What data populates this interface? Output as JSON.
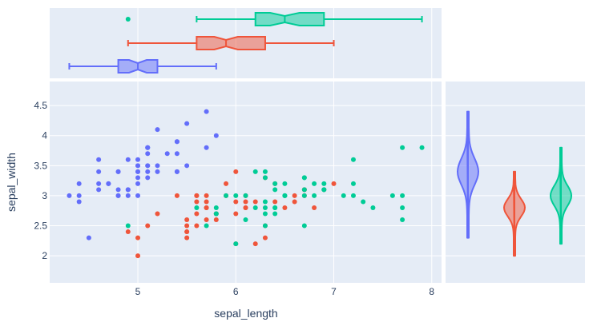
{
  "chart_data": {
    "type": "scatter",
    "xlabel": "sepal_length",
    "ylabel": "sepal_width",
    "xlim": [
      4.1,
      8.1
    ],
    "ylim": [
      1.55,
      4.9
    ],
    "xticks": [
      "5",
      "6",
      "7",
      "8"
    ],
    "yticks": [
      "2",
      "2.5",
      "3",
      "3.5",
      "4",
      "4.5"
    ],
    "grid": true,
    "legend": "none",
    "plot_background": "#E5ECF6",
    "series": [
      {
        "color": "#636EFA",
        "points": [
          [
            5.1,
            3.5
          ],
          [
            4.9,
            3.0
          ],
          [
            4.7,
            3.2
          ],
          [
            4.6,
            3.1
          ],
          [
            5.0,
            3.6
          ],
          [
            5.4,
            3.9
          ],
          [
            4.6,
            3.4
          ],
          [
            5.0,
            3.4
          ],
          [
            4.4,
            2.9
          ],
          [
            4.9,
            3.1
          ],
          [
            5.4,
            3.7
          ],
          [
            4.8,
            3.4
          ],
          [
            4.8,
            3.0
          ],
          [
            4.3,
            3.0
          ],
          [
            5.8,
            4.0
          ],
          [
            5.7,
            4.4
          ],
          [
            5.4,
            3.9
          ],
          [
            5.1,
            3.5
          ],
          [
            5.7,
            3.8
          ],
          [
            5.1,
            3.8
          ],
          [
            5.4,
            3.4
          ],
          [
            5.1,
            3.7
          ],
          [
            4.6,
            3.6
          ],
          [
            5.1,
            3.3
          ],
          [
            4.8,
            3.4
          ],
          [
            5.0,
            3.0
          ],
          [
            5.0,
            3.4
          ],
          [
            5.2,
            3.5
          ],
          [
            5.2,
            3.4
          ],
          [
            4.7,
            3.2
          ],
          [
            4.8,
            3.1
          ],
          [
            5.4,
            3.4
          ],
          [
            5.2,
            4.1
          ],
          [
            5.5,
            4.2
          ],
          [
            4.9,
            3.1
          ],
          [
            5.0,
            3.2
          ],
          [
            5.5,
            3.5
          ],
          [
            4.9,
            3.6
          ],
          [
            4.4,
            3.0
          ],
          [
            5.1,
            3.4
          ],
          [
            5.0,
            3.5
          ],
          [
            4.5,
            2.3
          ],
          [
            4.4,
            3.2
          ],
          [
            5.0,
            3.5
          ],
          [
            5.1,
            3.8
          ],
          [
            4.8,
            3.0
          ],
          [
            5.1,
            3.8
          ],
          [
            4.6,
            3.2
          ],
          [
            5.3,
            3.7
          ],
          [
            5.0,
            3.3
          ]
        ],
        "box": {
          "min": 4.3,
          "q1": 4.8,
          "median": 5.0,
          "q3": 5.2,
          "max": 5.8,
          "notch": [
            4.91,
            5.09
          ]
        },
        "violin": {
          "min": 2.3,
          "max": 4.4,
          "median": 3.4
        }
      },
      {
        "color": "#EF553B",
        "points": [
          [
            7.0,
            3.2
          ],
          [
            6.4,
            3.2
          ],
          [
            6.9,
            3.1
          ],
          [
            5.5,
            2.3
          ],
          [
            6.5,
            2.8
          ],
          [
            5.7,
            2.8
          ],
          [
            6.3,
            3.3
          ],
          [
            4.9,
            2.4
          ],
          [
            6.6,
            2.9
          ],
          [
            5.2,
            2.7
          ],
          [
            5.0,
            2.0
          ],
          [
            5.9,
            3.0
          ],
          [
            6.0,
            2.2
          ],
          [
            6.1,
            2.9
          ],
          [
            5.6,
            2.9
          ],
          [
            6.7,
            3.1
          ],
          [
            5.6,
            3.0
          ],
          [
            5.8,
            2.7
          ],
          [
            6.2,
            2.2
          ],
          [
            5.6,
            2.5
          ],
          [
            5.9,
            3.2
          ],
          [
            6.1,
            2.8
          ],
          [
            6.3,
            2.5
          ],
          [
            6.1,
            2.8
          ],
          [
            6.4,
            2.9
          ],
          [
            6.6,
            3.0
          ],
          [
            6.8,
            2.8
          ],
          [
            6.7,
            3.0
          ],
          [
            6.0,
            2.9
          ],
          [
            5.7,
            2.6
          ],
          [
            5.5,
            2.4
          ],
          [
            5.5,
            2.4
          ],
          [
            5.8,
            2.7
          ],
          [
            6.0,
            2.7
          ],
          [
            5.4,
            3.0
          ],
          [
            6.0,
            3.4
          ],
          [
            6.7,
            3.1
          ],
          [
            6.3,
            2.3
          ],
          [
            5.6,
            3.0
          ],
          [
            5.5,
            2.5
          ],
          [
            5.5,
            2.6
          ],
          [
            6.1,
            3.0
          ],
          [
            5.8,
            2.6
          ],
          [
            5.0,
            2.3
          ],
          [
            5.6,
            2.7
          ],
          [
            5.7,
            3.0
          ],
          [
            5.7,
            2.9
          ],
          [
            6.2,
            2.9
          ],
          [
            5.1,
            2.5
          ],
          [
            5.7,
            2.8
          ]
        ],
        "box": {
          "min": 4.9,
          "q1": 5.6,
          "median": 5.9,
          "q3": 6.3,
          "max": 7.0,
          "notch": [
            5.78,
            6.02
          ]
        },
        "violin": {
          "min": 2.0,
          "max": 3.4,
          "median": 2.8
        }
      },
      {
        "color": "#00CC96",
        "points": [
          [
            6.3,
            3.3
          ],
          [
            5.8,
            2.7
          ],
          [
            7.1,
            3.0
          ],
          [
            6.3,
            2.9
          ],
          [
            6.5,
            3.0
          ],
          [
            7.6,
            3.0
          ],
          [
            4.9,
            2.5
          ],
          [
            7.3,
            2.9
          ],
          [
            6.7,
            2.5
          ],
          [
            7.2,
            3.6
          ],
          [
            6.5,
            3.2
          ],
          [
            6.4,
            2.7
          ],
          [
            6.8,
            3.0
          ],
          [
            5.7,
            2.5
          ],
          [
            5.8,
            2.8
          ],
          [
            6.4,
            3.2
          ],
          [
            6.5,
            3.0
          ],
          [
            7.7,
            3.8
          ],
          [
            7.7,
            2.6
          ],
          [
            6.0,
            2.2
          ],
          [
            6.9,
            3.2
          ],
          [
            5.6,
            2.8
          ],
          [
            7.7,
            2.8
          ],
          [
            6.3,
            2.7
          ],
          [
            6.7,
            3.3
          ],
          [
            7.2,
            3.2
          ],
          [
            6.2,
            2.8
          ],
          [
            6.1,
            3.0
          ],
          [
            6.4,
            2.8
          ],
          [
            7.2,
            3.0
          ],
          [
            7.4,
            2.8
          ],
          [
            7.9,
            3.8
          ],
          [
            6.4,
            2.8
          ],
          [
            6.3,
            2.8
          ],
          [
            6.1,
            2.6
          ],
          [
            7.7,
            3.0
          ],
          [
            6.3,
            3.4
          ],
          [
            6.4,
            3.1
          ],
          [
            6.0,
            3.0
          ],
          [
            6.9,
            3.1
          ],
          [
            6.7,
            3.1
          ],
          [
            6.9,
            3.1
          ],
          [
            5.8,
            2.7
          ],
          [
            6.8,
            3.2
          ],
          [
            6.7,
            3.3
          ],
          [
            6.7,
            3.0
          ],
          [
            6.3,
            2.5
          ],
          [
            6.5,
            3.0
          ],
          [
            6.2,
            3.4
          ],
          [
            5.9,
            3.0
          ]
        ],
        "box": {
          "min": 5.6,
          "q1": 6.2,
          "median": 6.5,
          "q3": 6.9,
          "max": 7.9,
          "notch": [
            6.35,
            6.65
          ],
          "outliers": [
            4.9
          ]
        },
        "violin": {
          "min": 2.2,
          "max": 3.8,
          "median": 3.0
        }
      }
    ]
  }
}
